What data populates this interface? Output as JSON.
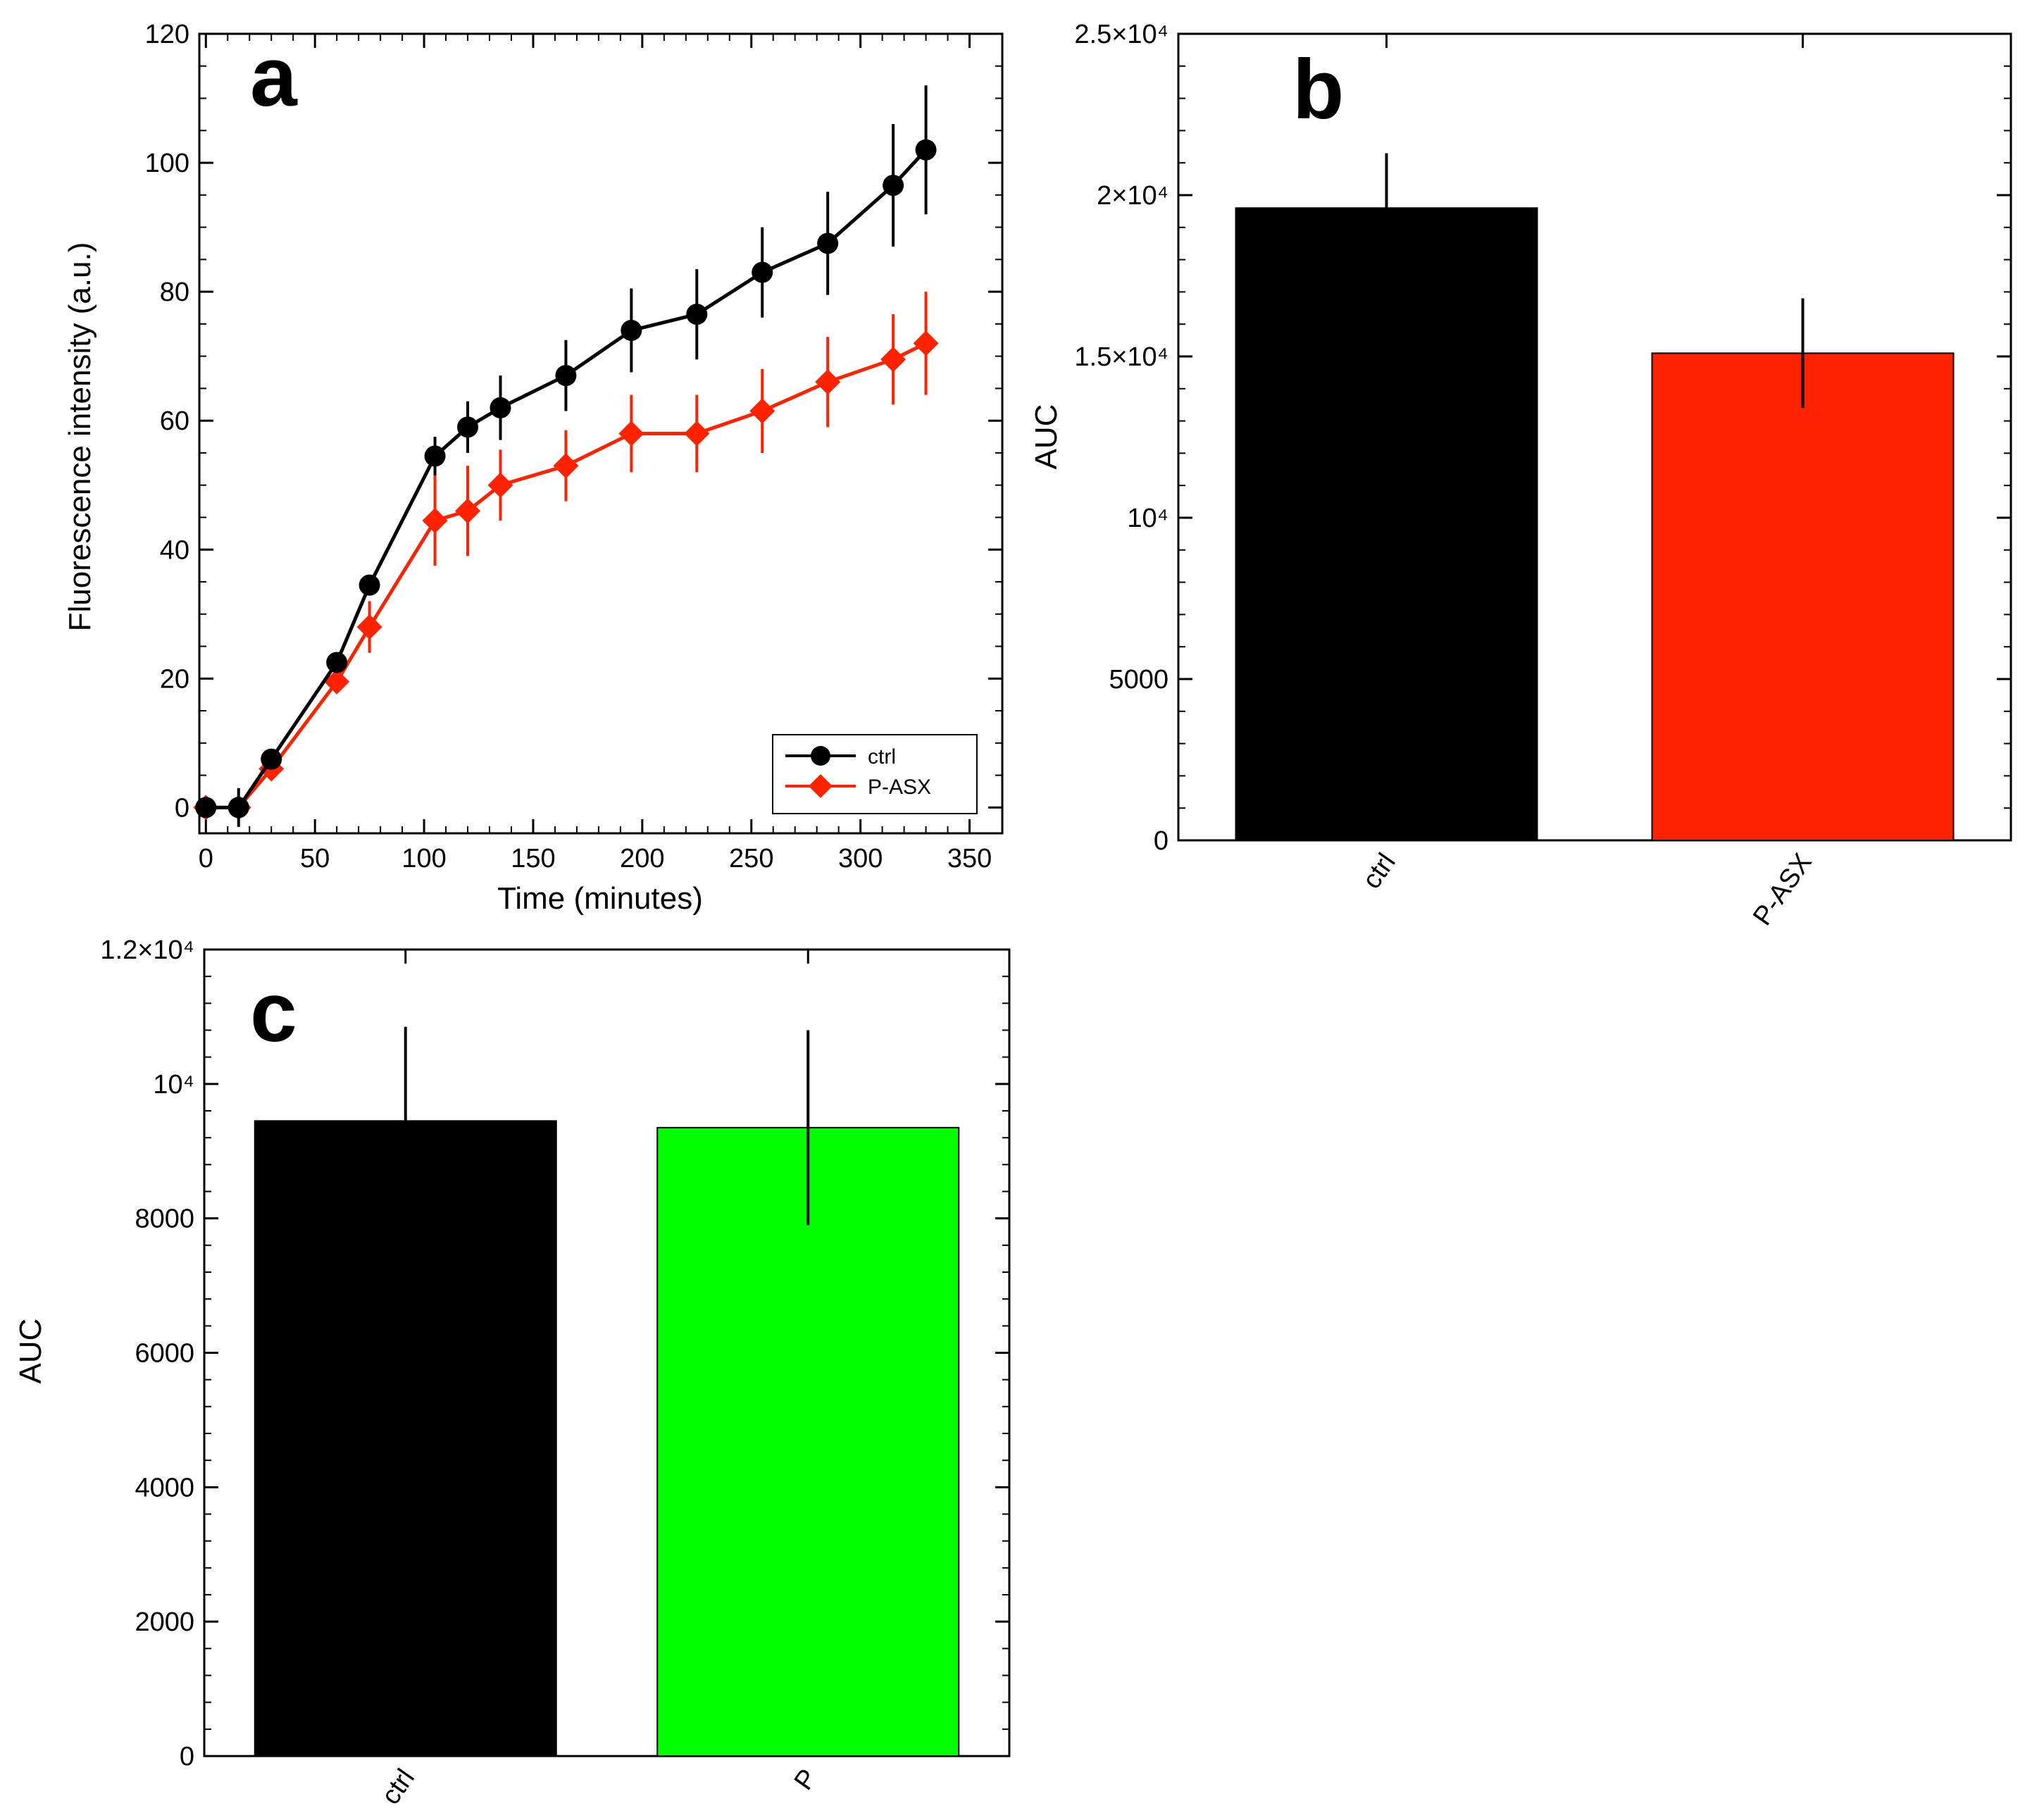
{
  "colors": {
    "ctrl": "#000000",
    "pasx": "#ff2200",
    "p": "#00ff00",
    "frame": "#000000"
  },
  "chart_data": [
    {
      "id": "a",
      "panel_label": "a",
      "type": "line",
      "xlabel": "Time (minutes)",
      "ylabel": "Fluorescence intensity (a.u.)",
      "xlim": [
        -3,
        365
      ],
      "ylim": [
        -4,
        120
      ],
      "xticks": [
        0,
        50,
        100,
        150,
        200,
        250,
        300,
        350
      ],
      "yticks": [
        0,
        20,
        40,
        60,
        80,
        100,
        120
      ],
      "xtick_labels": [
        "0",
        "50",
        "100",
        "150",
        "200",
        "250",
        "300",
        "350"
      ],
      "ytick_labels": [
        "0",
        "20",
        "40",
        "60",
        "80",
        "100",
        "120"
      ],
      "legend": {
        "position": "bottom-right",
        "entries": [
          "ctrl",
          "P-ASX"
        ]
      },
      "series": [
        {
          "name": "ctrl",
          "color": "#000000",
          "marker": "circle",
          "x": [
            0,
            15,
            30,
            60,
            75,
            105,
            120,
            135,
            165,
            195,
            225,
            255,
            285,
            315,
            330
          ],
          "y": [
            0,
            0,
            7.5,
            22.5,
            34.5,
            54.5,
            59,
            62,
            67,
            74,
            76.5,
            83,
            87.5,
            96.5,
            102
          ],
          "err": [
            1.5,
            3,
            1.5,
            1.5,
            1.5,
            3,
            4,
            5,
            5.5,
            6.5,
            7,
            7,
            8,
            9.5,
            10
          ]
        },
        {
          "name": "P-ASX",
          "color": "#ff2200",
          "marker": "diamond",
          "x": [
            0,
            15,
            30,
            60,
            75,
            105,
            120,
            135,
            165,
            195,
            225,
            255,
            285,
            315,
            330
          ],
          "y": [
            0,
            0,
            6,
            19.5,
            28,
            44.5,
            46,
            50,
            53,
            58,
            58,
            61.5,
            66,
            69.5,
            72
          ],
          "err": [
            1.5,
            1.5,
            1.5,
            1.5,
            4,
            7,
            7,
            5.5,
            5.5,
            6,
            6,
            6.5,
            7,
            7,
            8
          ]
        }
      ]
    },
    {
      "id": "b",
      "panel_label": "b",
      "type": "bar",
      "xlabel": "",
      "ylabel": "AUC",
      "ylim": [
        0,
        25000
      ],
      "yticks": [
        0,
        5000,
        10000,
        15000,
        20000,
        25000
      ],
      "ytick_labels": [
        "0",
        "5000",
        "10⁴",
        "1.5×10⁴",
        "2×10⁴",
        "2.5×10⁴"
      ],
      "categories": [
        "ctrl",
        "P-ASX"
      ],
      "values": [
        19600,
        15100
      ],
      "errors": [
        1700,
        1700
      ],
      "bar_colors": [
        "#000000",
        "#ff2200"
      ]
    },
    {
      "id": "c",
      "panel_label": "c",
      "type": "bar",
      "xlabel": "",
      "ylabel": "AUC",
      "ylim": [
        0,
        12000
      ],
      "yticks": [
        0,
        2000,
        4000,
        6000,
        8000,
        10000,
        12000
      ],
      "ytick_labels": [
        "0",
        "2000",
        "4000",
        "6000",
        "8000",
        "10⁴",
        "1.2×10⁴"
      ],
      "categories": [
        "ctrl",
        "P"
      ],
      "values": [
        9450,
        9350
      ],
      "errors": [
        1400,
        1450
      ],
      "bar_colors": [
        "#000000",
        "#00ff00"
      ]
    }
  ]
}
